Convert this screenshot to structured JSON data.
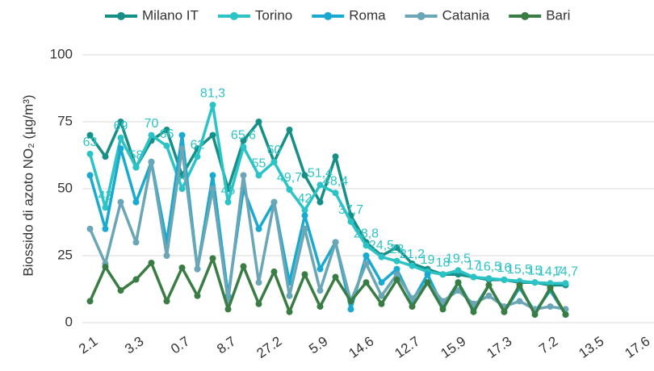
{
  "chart_data": {
    "type": "line",
    "y_axis_label": "Biossido di azoto NO₂ (µg/m³)",
    "categories": [
      "2.1",
      null,
      null,
      "3.3",
      null,
      null,
      "0.7",
      null,
      null,
      "8.7",
      null,
      null,
      "27.2",
      null,
      null,
      "5.9",
      null,
      null,
      "14.6",
      null,
      null,
      "12.7",
      null,
      null,
      "15.9",
      null,
      null,
      "17.3",
      null,
      null,
      "7.2",
      null,
      null,
      "13.5",
      null,
      null,
      "17.6"
    ],
    "series": [
      {
        "name": "Milano IT",
        "color": "#168f86",
        "values": [
          70,
          62,
          75,
          58,
          68,
          72,
          55,
          65,
          70,
          50,
          68,
          75,
          60,
          72,
          55,
          45,
          62,
          40,
          30,
          25,
          28,
          22,
          20,
          18,
          18,
          17,
          16,
          16,
          15,
          15,
          14,
          14,
          null,
          null,
          null,
          null,
          null
        ]
      },
      {
        "name": "Torino",
        "color": "#2cc3c6",
        "values": [
          63,
          43,
          69,
          58,
          70,
          66,
          50,
          62,
          81.3,
          45,
          65.6,
          55,
          60,
          49.7,
          42,
          51.4,
          48.4,
          37.7,
          28.8,
          24.5,
          23,
          21.2,
          19,
          18,
          19.5,
          17,
          16.5,
          16,
          15.5,
          15,
          14.7,
          14.7,
          null,
          null,
          null,
          null,
          null
        ],
        "value_labels": [
          "63",
          "43",
          "69",
          "58",
          "70",
          "66",
          "50",
          "62",
          "81,3",
          "45",
          "65,6",
          "55",
          "60",
          "49,7",
          "42",
          "51,4",
          "48,4",
          "37,7",
          "28,8",
          "24,5",
          "23",
          "21,2",
          "19",
          "18",
          "19,5",
          "17",
          "16,5",
          "16",
          "15,5",
          "15",
          "14,7",
          "14,7",
          null,
          null,
          null,
          null,
          null
        ]
      },
      {
        "name": "Roma",
        "color": "#1aa9cf",
        "values": [
          55,
          35,
          65,
          45,
          60,
          30,
          70,
          20,
          55,
          10,
          50,
          35,
          45,
          15,
          40,
          20,
          30,
          5,
          25,
          15,
          20,
          8,
          18,
          6,
          15,
          5,
          14,
          4,
          13,
          4,
          12,
          3,
          null,
          null,
          null,
          null,
          null
        ]
      },
      {
        "name": "Catania",
        "color": "#6aa6b5",
        "values": [
          35,
          22,
          45,
          30,
          60,
          25,
          65,
          20,
          50,
          8,
          55,
          15,
          45,
          10,
          35,
          12,
          30,
          8,
          22,
          10,
          18,
          9,
          15,
          8,
          12,
          7,
          10,
          6,
          8,
          5,
          6,
          5,
          null,
          null,
          null,
          null,
          null
        ]
      },
      {
        "name": "Bari",
        "color": "#3a7d44",
        "values": [
          8,
          20.8,
          12,
          16.1,
          22.3,
          8,
          20.5,
          10,
          24,
          5,
          21,
          7,
          19,
          4,
          18,
          6,
          17,
          8,
          15,
          7,
          16,
          6,
          15,
          5,
          15,
          4,
          14,
          4,
          14,
          3,
          13,
          3,
          null,
          null,
          null,
          null,
          null
        ]
      }
    ],
    "ylim": [
      0,
      100
    ],
    "yticks": [
      0,
      25,
      50,
      75,
      100
    ],
    "grid": true,
    "legend": "top"
  }
}
